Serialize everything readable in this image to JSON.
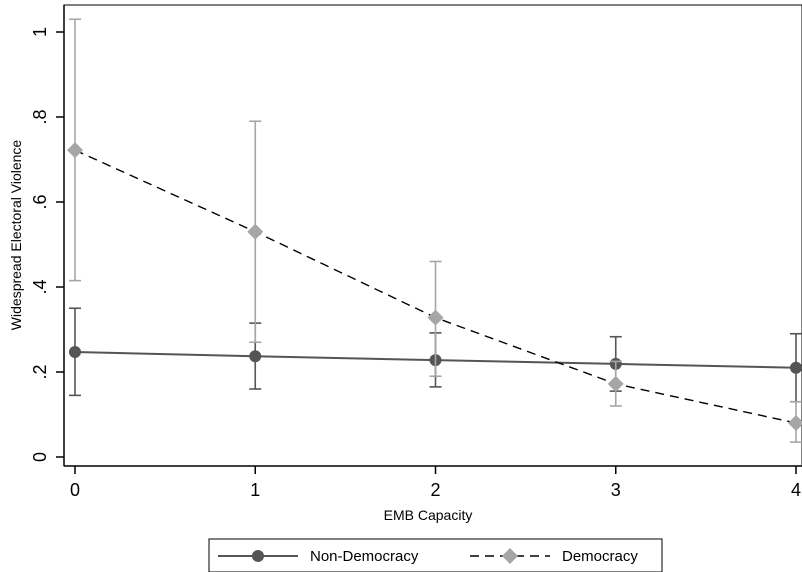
{
  "chart_data": {
    "type": "line",
    "xlabel": "EMB Capacity",
    "ylabel": "Widespread Electoral Violence",
    "x": [
      0,
      1,
      2,
      3,
      4
    ],
    "xlim": [
      0,
      4
    ],
    "ylim": [
      0,
      1
    ],
    "x_ticks": [
      "0",
      "1",
      "2",
      "3",
      "4"
    ],
    "y_ticks": [
      "0",
      ".2",
      ".4",
      ".6",
      ".8",
      "1"
    ],
    "y_tick_values": [
      0,
      0.2,
      0.4,
      0.6,
      0.8,
      1
    ],
    "grid": false,
    "legend_position": "bottom",
    "error_bars": true,
    "series": [
      {
        "name": "Non-Democracy",
        "line_style": "solid",
        "marker": "circle",
        "color": "#555555",
        "values": [
          0.247,
          0.237,
          0.228,
          0.219,
          0.21
        ],
        "lower": [
          0.145,
          0.16,
          0.165,
          0.155,
          0.13
        ],
        "upper": [
          0.35,
          0.315,
          0.292,
          0.283,
          0.29
        ]
      },
      {
        "name": "Democracy",
        "line_style": "dashed",
        "marker": "diamond",
        "color": "#a6a6a6",
        "values": [
          0.722,
          0.53,
          0.328,
          0.172,
          0.08
        ],
        "lower": [
          0.415,
          0.27,
          0.19,
          0.12,
          0.035
        ],
        "upper": [
          1.03,
          0.79,
          0.46,
          0.225,
          0.13
        ]
      }
    ]
  }
}
